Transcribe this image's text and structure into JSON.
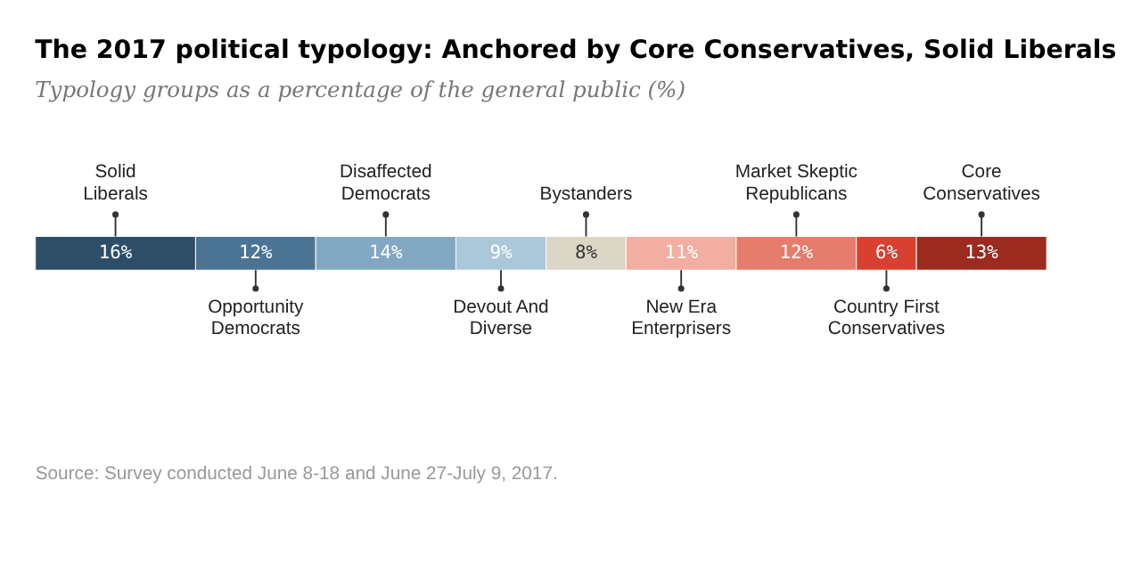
{
  "chart_data": {
    "type": "bar",
    "orientation": "horizontal",
    "stacked": true,
    "title": "The 2017 political typology: Anchored by Core Conservatives, Solid Liberals",
    "subtitle": "Typology groups as a percentage of the general public (%)",
    "categories": [
      null
    ],
    "series": [
      {
        "name": "Solid\nLiberals",
        "color": "#2e4e68",
        "values": [
          16
        ],
        "value_labels": [
          "16%"
        ]
      },
      {
        "name": "Opportunity\nDemocrats",
        "color": "#4b7393",
        "values": [
          12
        ],
        "value_labels": [
          "12%"
        ]
      },
      {
        "name": "Disaffected\nDemocrats",
        "color": "#81a7c2",
        "values": [
          14
        ],
        "value_labels": [
          "14%"
        ]
      },
      {
        "name": "Devout And\nDiverse",
        "color": "#abc7da",
        "values": [
          9
        ],
        "value_labels": [
          "9%"
        ]
      },
      {
        "name": "Bystanders",
        "color": "#dcd6c6",
        "values": [
          8
        ],
        "value_labels": [
          "8%"
        ]
      },
      {
        "name": "New Era\nEnterprisers",
        "color": "#f1aea1",
        "values": [
          11
        ],
        "value_labels": [
          "11%"
        ]
      },
      {
        "name": "Market Skeptic\nRepublicans",
        "color": "#e57c6c",
        "values": [
          12
        ],
        "value_labels": [
          "12%"
        ]
      },
      {
        "name": "Country First\nConservatives",
        "color": "#d8402f",
        "values": [
          6
        ],
        "value_labels": [
          "6%"
        ]
      },
      {
        "name": "Core\nConservatives",
        "color": "#9b2a1f",
        "values": [
          13
        ],
        "value_labels": [
          "13%"
        ]
      }
    ],
    "annotations": [
      "Source: Survey conducted June 8-18 and June 27-July 9, 2017."
    ]
  }
}
